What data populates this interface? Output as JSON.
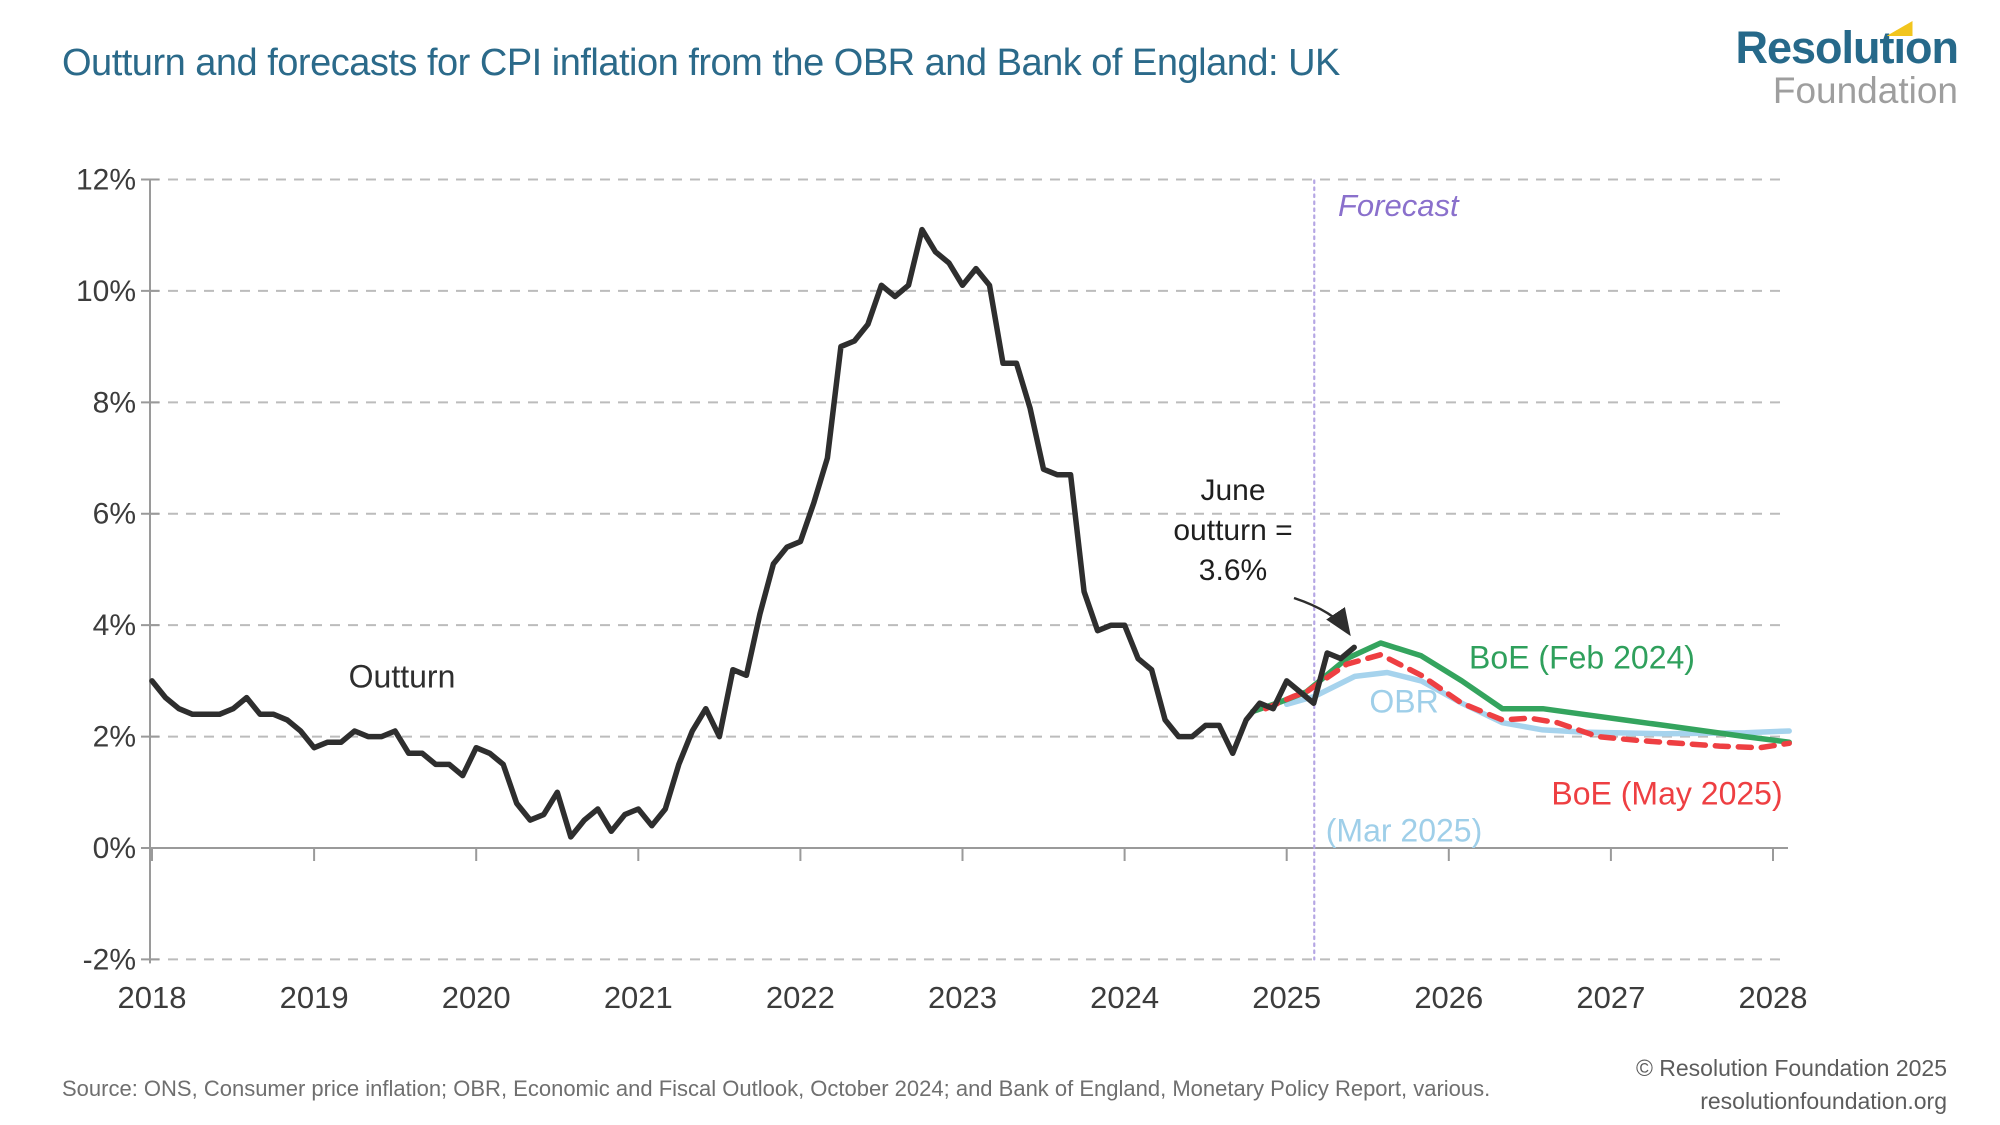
{
  "header": {
    "title": "Outturn and forecasts for CPI inflation from the OBR and Bank of England: UK",
    "logo": {
      "part1": "Resolut",
      "part2": "i",
      "part3": "on",
      "line2": "Foundation"
    }
  },
  "chart_data": {
    "type": "line",
    "title": "Outturn and forecasts for CPI inflation from the OBR and Bank of England: UK",
    "xlabel": "",
    "ylabel": "",
    "ylim": [
      -2,
      12
    ],
    "xlim": [
      2018,
      2028.15
    ],
    "grid": "dashed horizontal gridlines at every 2 percentage points, solid line at 0%",
    "legend_position": "labels placed next to lines",
    "y_ticks": [
      {
        "v": 12,
        "label": "12%"
      },
      {
        "v": 10,
        "label": "10%"
      },
      {
        "v": 8,
        "label": "8%"
      },
      {
        "v": 6,
        "label": "6%"
      },
      {
        "v": 4,
        "label": "4%"
      },
      {
        "v": 2,
        "label": "2%"
      },
      {
        "v": 0,
        "label": "0%"
      },
      {
        "v": -2,
        "label": "-2%"
      }
    ],
    "x_ticks": [
      {
        "v": 2018,
        "label": "2018"
      },
      {
        "v": 2019,
        "label": "2019"
      },
      {
        "v": 2020,
        "label": "2020"
      },
      {
        "v": 2021,
        "label": "2021"
      },
      {
        "v": 2022,
        "label": "2022"
      },
      {
        "v": 2023,
        "label": "2023"
      },
      {
        "v": 2024,
        "label": "2024"
      },
      {
        "v": 2025,
        "label": "2025"
      },
      {
        "v": 2026,
        "label": "2026"
      },
      {
        "v": 2027,
        "label": "2027"
      },
      {
        "v": 2028,
        "label": "2028"
      }
    ],
    "forecast_divider": {
      "x": 2025.17,
      "label": "Forecast",
      "color": "#b5a6e4"
    },
    "annotation": {
      "lines": [
        "June",
        "outturn =",
        "3.6%"
      ],
      "points_to": "end of Outturn line (June 2025, 3.6%)"
    },
    "series": [
      {
        "name": "Outturn",
        "kind": "monthly",
        "start_year": 2018,
        "start_month": 1,
        "color": "#2e2e2e",
        "dash": "solid",
        "values": [
          3.0,
          2.7,
          2.5,
          2.4,
          2.4,
          2.4,
          2.5,
          2.7,
          2.4,
          2.4,
          2.3,
          2.1,
          1.8,
          1.9,
          1.9,
          2.1,
          2.0,
          2.0,
          2.1,
          1.7,
          1.7,
          1.5,
          1.5,
          1.3,
          1.8,
          1.7,
          1.5,
          0.8,
          0.5,
          0.6,
          1.0,
          0.2,
          0.5,
          0.7,
          0.3,
          0.6,
          0.7,
          0.4,
          0.7,
          1.5,
          2.1,
          2.5,
          2.0,
          3.2,
          3.1,
          4.2,
          5.1,
          5.4,
          5.5,
          6.2,
          7.0,
          9.0,
          9.1,
          9.4,
          10.1,
          9.9,
          10.1,
          11.1,
          10.7,
          10.5,
          10.1,
          10.4,
          10.1,
          8.7,
          8.7,
          7.9,
          6.8,
          6.7,
          6.7,
          4.6,
          3.9,
          4.0,
          4.0,
          3.4,
          3.2,
          2.3,
          2.0,
          2.0,
          2.2,
          2.2,
          1.7,
          2.3,
          2.6,
          2.5,
          3.0,
          2.8,
          2.6,
          3.5,
          3.4,
          3.6
        ]
      },
      {
        "name": "BoE (Feb 2024)",
        "kind": "points",
        "color": "#34a45e",
        "dash": "solid",
        "points": [
          [
            2024.79,
            2.45
          ],
          [
            2024.96,
            2.62
          ],
          [
            2025.12,
            2.8
          ],
          [
            2025.37,
            3.4
          ],
          [
            2025.58,
            3.68
          ],
          [
            2025.83,
            3.45
          ],
          [
            2026.08,
            3.0
          ],
          [
            2026.33,
            2.5
          ],
          [
            2026.58,
            2.5
          ],
          [
            2026.83,
            2.4
          ],
          [
            2027.08,
            2.3
          ],
          [
            2027.33,
            2.2
          ],
          [
            2027.58,
            2.1
          ],
          [
            2027.83,
            2.0
          ],
          [
            2028.1,
            1.9
          ]
        ]
      },
      {
        "name": "OBR (Mar 2025)",
        "label_lines": [
          "OBR",
          "(Mar 2025)"
        ],
        "kind": "points",
        "color": "#a6d3ed",
        "dash": "solid",
        "points": [
          [
            2025.0,
            2.58
          ],
          [
            2025.17,
            2.72
          ],
          [
            2025.42,
            3.08
          ],
          [
            2025.62,
            3.15
          ],
          [
            2025.83,
            3.0
          ],
          [
            2026.08,
            2.6
          ],
          [
            2026.33,
            2.25
          ],
          [
            2026.58,
            2.12
          ],
          [
            2026.83,
            2.08
          ],
          [
            2027.33,
            2.05
          ],
          [
            2027.83,
            2.07
          ],
          [
            2028.1,
            2.1
          ]
        ]
      },
      {
        "name": "BoE (May 2025)",
        "kind": "points",
        "color": "#ee3f42",
        "dash": "dashed",
        "points": [
          [
            2024.87,
            2.5
          ],
          [
            2025.04,
            2.72
          ],
          [
            2025.12,
            2.8
          ],
          [
            2025.37,
            3.3
          ],
          [
            2025.58,
            3.47
          ],
          [
            2025.83,
            3.1
          ],
          [
            2026.08,
            2.6
          ],
          [
            2026.33,
            2.3
          ],
          [
            2026.5,
            2.33
          ],
          [
            2026.67,
            2.25
          ],
          [
            2026.92,
            2.0
          ],
          [
            2027.17,
            1.93
          ],
          [
            2027.42,
            1.88
          ],
          [
            2027.67,
            1.83
          ],
          [
            2027.92,
            1.8
          ],
          [
            2028.1,
            1.88
          ]
        ]
      }
    ],
    "colors": {
      "outturn": "#2e2e2e",
      "boe_feb": "#34a45e",
      "obr": "#a6d3ed",
      "boe_may": "#ee3f42",
      "forecast_divider": "#b5a6e4",
      "gridline": "#bcbcbc",
      "axis": "#9a9a9a",
      "tick_text": "#3c3c3c"
    }
  },
  "footer": {
    "source": "Source: ONS, Consumer price inflation; OBR, Economic and Fiscal Outlook, October 2024; and Bank of England, Monetary Policy Report, various.",
    "copyright": "© Resolution Foundation 2025",
    "website": "resolutionfoundation.org"
  }
}
